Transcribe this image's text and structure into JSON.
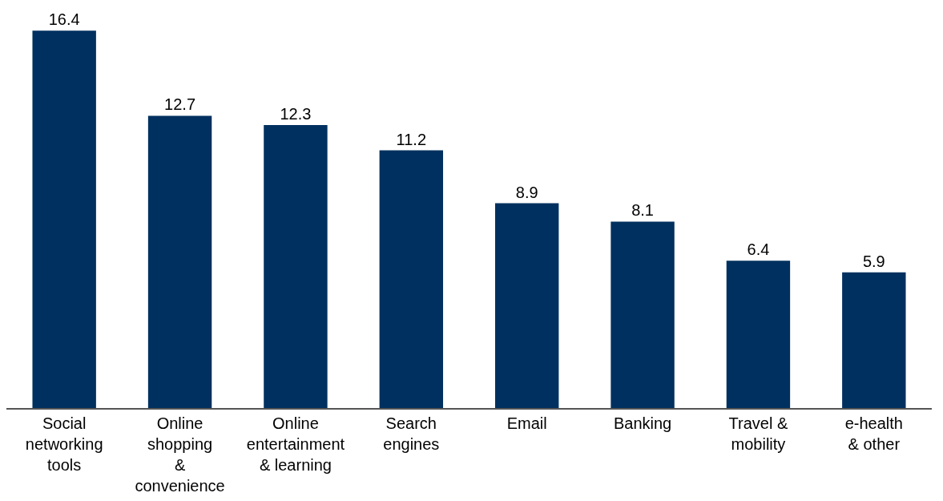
{
  "chart_data": {
    "type": "bar",
    "categories": [
      "Social\nnetworking\ntools",
      "Online\nshopping\n&\nconvenience",
      "Online\nentertainment\n& learning",
      "Search\nengines",
      "Email",
      "Banking",
      "Travel &\nmobility",
      "e-health\n& other"
    ],
    "values": [
      16.4,
      12.7,
      12.3,
      11.2,
      8.9,
      8.1,
      6.4,
      5.9
    ],
    "color": "#00305f",
    "data_labels": true
  }
}
